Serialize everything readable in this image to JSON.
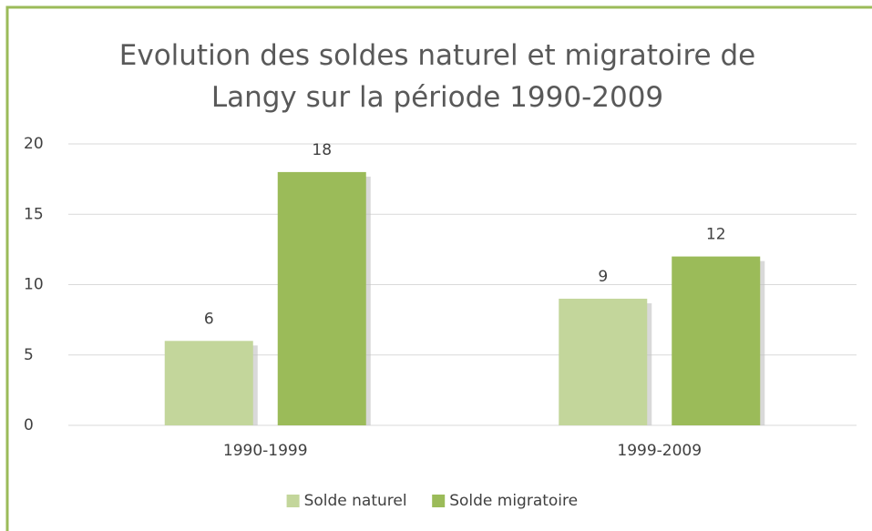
{
  "chart_data": {
    "type": "bar",
    "title": "Evolution des soldes naturel et migratoire de Langy sur la période 1990-2009",
    "categories": [
      "1990-1999",
      "1999-2009"
    ],
    "series": [
      {
        "name": "Solde naturel",
        "color": "#c3d69b",
        "values": [
          6,
          9
        ]
      },
      {
        "name": "Solde migratoire",
        "color": "#9bbb59",
        "values": [
          18,
          12
        ]
      }
    ],
    "ylim": [
      0,
      20
    ],
    "yticks": [
      0,
      5,
      10,
      15,
      20
    ],
    "grid": true,
    "legend": "bottom"
  }
}
